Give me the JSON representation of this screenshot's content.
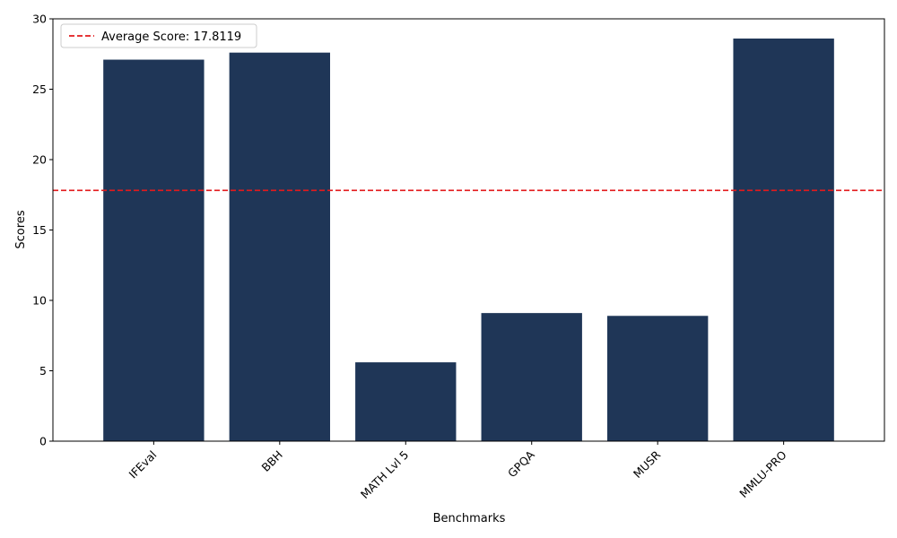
{
  "chart_data": {
    "type": "bar",
    "categories": [
      "IFEval",
      "BBH",
      "MATH Lvl 5",
      "GPQA",
      "MUSR",
      "MMLU-PRO"
    ],
    "values": [
      27.1,
      27.6,
      5.6,
      9.1,
      8.9,
      28.6
    ],
    "xlabel": "Benchmarks",
    "ylabel": "Scores",
    "ylim": [
      0,
      30
    ],
    "yticks": [
      0,
      5,
      10,
      15,
      20,
      25,
      30
    ],
    "average_line": {
      "value": 17.8119,
      "label": "Average Score: 17.8119"
    },
    "legend_position": "top-left",
    "grid": false,
    "colors": {
      "bar": "#1f3657",
      "average_line": "#e31a1c"
    }
  }
}
